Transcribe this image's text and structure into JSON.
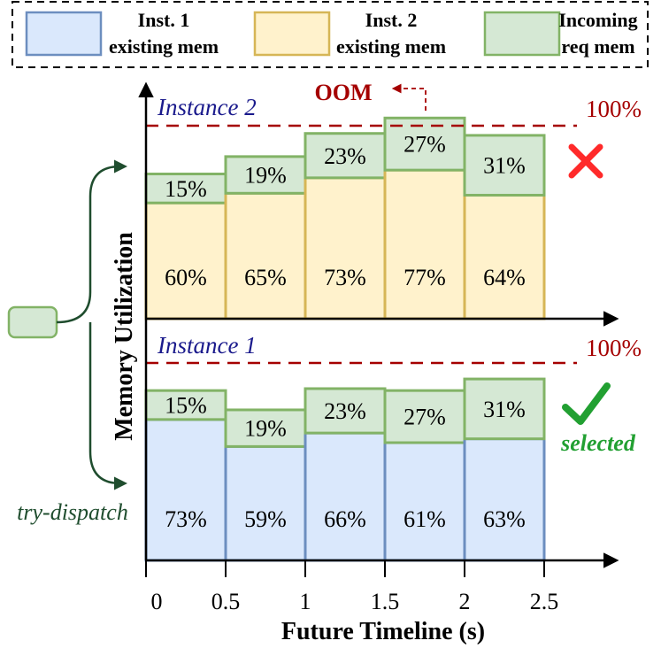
{
  "chart_data": {
    "type": "bar",
    "stacked": true,
    "xlabel": "Future Timeline (s)",
    "ylabel": "Memory Utilization",
    "x_ticks": [
      "0",
      "0.5",
      "1",
      "1.5",
      "2",
      "2.5"
    ],
    "x_intervals": [
      [
        0,
        0.5
      ],
      [
        0.5,
        1
      ],
      [
        1,
        1.5
      ],
      [
        1.5,
        2
      ],
      [
        2,
        2.5
      ]
    ],
    "legend": [
      {
        "label_line1": "Inst. 1",
        "label_line2": "existing mem",
        "fill": "#dae8fc",
        "stroke": "#6c8ebf"
      },
      {
        "label_line1": "Inst. 2",
        "label_line2": "existing mem",
        "fill": "#fff2cc",
        "stroke": "#d6b656"
      },
      {
        "label_line1": "Incoming",
        "label_line2": "req mem",
        "fill": "#d5e8d4",
        "stroke": "#82b366"
      }
    ],
    "panels": [
      {
        "instance": "Instance 2",
        "existing": [
          60,
          65,
          73,
          77,
          64
        ],
        "existing_labels": [
          "60%",
          "65%",
          "73%",
          "77%",
          "64%"
        ],
        "incoming": [
          15,
          19,
          23,
          27,
          31
        ],
        "incoming_labels": [
          "15%",
          "19%",
          "23%",
          "27%",
          "31%"
        ],
        "limit_label": "100%",
        "overflow_label": "OOM",
        "verdict": "rejected",
        "existing_fill": "#fff2cc",
        "existing_stroke": "#d6b656"
      },
      {
        "instance": "Instance 1",
        "existing": [
          73,
          59,
          66,
          61,
          63
        ],
        "existing_labels": [
          "73%",
          "59%",
          "66%",
          "61%",
          "63%"
        ],
        "incoming": [
          15,
          19,
          23,
          27,
          31
        ],
        "incoming_labels": [
          "15%",
          "19%",
          "23%",
          "27%",
          "31%"
        ],
        "limit_label": "100%",
        "verdict": "selected",
        "verdict_label": "selected",
        "existing_fill": "#dae8fc",
        "existing_stroke": "#6c8ebf"
      }
    ],
    "dispatch_label": "try-dispatch",
    "incoming_fill": "#d5e8d4",
    "incoming_stroke": "#82b366",
    "colors": {
      "limit_line": "#a50000",
      "instance_label": "#1a1a8c",
      "dispatch": "#1f4d2e",
      "cross": "#ff2a2a",
      "check": "#22a032"
    }
  }
}
